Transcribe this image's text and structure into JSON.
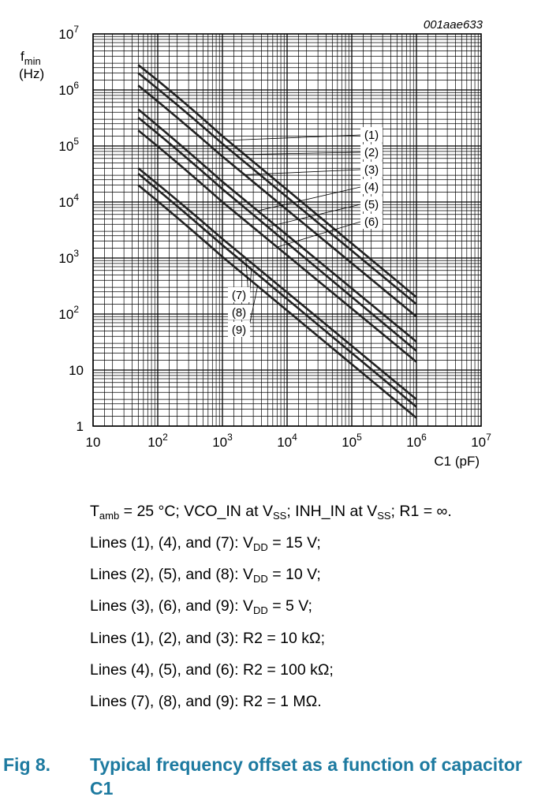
{
  "chart_data": {
    "type": "line",
    "code": "001aae633",
    "xlabel": "C1 (pF)",
    "ylabel": [
      "f",
      "min",
      "(Hz)"
    ],
    "x_scale": "log",
    "y_scale": "log",
    "xlim": [
      10,
      10000000
    ],
    "ylim": [
      1,
      10000000
    ],
    "grid": true,
    "x_ticks": [
      {
        "value": 10,
        "base": "10",
        "exp": ""
      },
      {
        "value": 100,
        "base": "10",
        "exp": "2"
      },
      {
        "value": 1000,
        "base": "10",
        "exp": "3"
      },
      {
        "value": 10000,
        "base": "10",
        "exp": "4"
      },
      {
        "value": 100000,
        "base": "10",
        "exp": "5"
      },
      {
        "value": 1000000,
        "base": "10",
        "exp": "6"
      },
      {
        "value": 10000000,
        "base": "10",
        "exp": "7"
      }
    ],
    "y_ticks": [
      {
        "value": 1,
        "base": "1",
        "exp": ""
      },
      {
        "value": 10,
        "base": "10",
        "exp": ""
      },
      {
        "value": 100,
        "base": "10",
        "exp": "2"
      },
      {
        "value": 1000,
        "base": "10",
        "exp": "3"
      },
      {
        "value": 10000,
        "base": "10",
        "exp": "4"
      },
      {
        "value": 100000,
        "base": "10",
        "exp": "5"
      },
      {
        "value": 1000000,
        "base": "10",
        "exp": "6"
      },
      {
        "value": 10000000,
        "base": "10",
        "exp": "7"
      }
    ],
    "series": [
      {
        "name": "(1)",
        "x": [
          50,
          200,
          1000,
          1000000
        ],
        "y": [
          2800000,
          800000,
          150000,
          200
        ]
      },
      {
        "name": "(2)",
        "x": [
          50,
          200,
          1000,
          1000000
        ],
        "y": [
          2000000,
          560000,
          110000,
          150
        ]
      },
      {
        "name": "(3)",
        "x": [
          50,
          200,
          1000,
          1000000
        ],
        "y": [
          1200000,
          330000,
          65000,
          90
        ]
      },
      {
        "name": "(4)",
        "x": [
          50,
          200,
          1000,
          1000000
        ],
        "y": [
          450000,
          120000,
          23000,
          32
        ]
      },
      {
        "name": "(5)",
        "x": [
          50,
          200,
          1000,
          1000000
        ],
        "y": [
          320000,
          88000,
          17000,
          22
        ]
      },
      {
        "name": "(6)",
        "x": [
          50,
          200,
          1000,
          1000000
        ],
        "y": [
          190000,
          52000,
          10000,
          14
        ]
      },
      {
        "name": "(7)",
        "x": [
          50,
          200,
          1000,
          1000000
        ],
        "y": [
          40000,
          11000,
          2200,
          3
        ]
      },
      {
        "name": "(8)",
        "x": [
          50,
          200,
          1000,
          1000000
        ],
        "y": [
          32000,
          8600,
          1700,
          2.2
        ]
      },
      {
        "name": "(9)",
        "x": [
          50,
          200,
          1000,
          1000000
        ],
        "y": [
          20000,
          5400,
          1050,
          1.4
        ]
      }
    ]
  },
  "notes": {
    "line1": {
      "a": "T",
      "a_sub": "amb",
      "b": " = 25 °C; VCO_IN at V",
      "b_sub": "SS",
      "c": "; INH_IN at V",
      "c_sub": "SS",
      "d": "; R1 = ∞."
    },
    "line2": {
      "a": "Lines (1), (4), and (7): V",
      "a_sub": "DD",
      "b": " = 15 V;"
    },
    "line3": {
      "a": "Lines (2), (5), and (8): V",
      "a_sub": "DD",
      "b": " = 10 V;"
    },
    "line4": {
      "a": "Lines (3), (6), and (9): V",
      "a_sub": "DD",
      "b": " = 5 V;"
    },
    "line5": "Lines (1), (2), and (3): R2 = 10 kΩ;",
    "line6": "Lines (4), (5), and (6): R2 = 100 kΩ;",
    "line7": "Lines (7), (8), and (9): R2 = 1 MΩ."
  },
  "caption": {
    "number": "Fig 8.",
    "title": "Typical frequency offset as a function of capacitor C1"
  }
}
